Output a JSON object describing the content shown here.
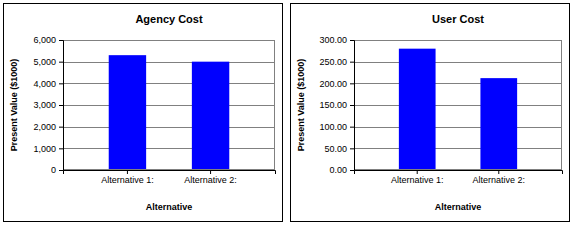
{
  "chart_data": [
    {
      "type": "bar",
      "title": "Agency Cost",
      "x_label": "Alternative",
      "y_label": "Present Value ($1000)",
      "categories": [
        "Alternative 1:",
        "Alternative 2:"
      ],
      "values": [
        5300,
        5000
      ],
      "color": "#0000ff",
      "ylim": [
        0,
        6000
      ],
      "yticks": [
        0,
        {
          "value": 1000,
          "label": "1,000"
        },
        {
          "value": 2000,
          "label": "2,000"
        },
        {
          "value": 3000,
          "label": "3,000"
        },
        {
          "value": 4000,
          "label": "4,000"
        },
        {
          "value": 5000,
          "label": "5,000"
        },
        {
          "value": 6000,
          "label": "6,000"
        }
      ],
      "grid": true
    },
    {
      "type": "bar",
      "title": "User Cost",
      "x_label": "Alternative",
      "y_label": "Present Value ($1000)",
      "categories": [
        "Alternative 1:",
        "Alternative 2:"
      ],
      "values": [
        280,
        212
      ],
      "color": "#0000ff",
      "ylim": [
        0,
        300
      ],
      "yticks": [
        {
          "value": 0,
          "label": "0.00"
        },
        {
          "value": 50,
          "label": "50.00"
        },
        {
          "value": 100,
          "label": "100.00"
        },
        {
          "value": 150,
          "label": "150.00"
        },
        {
          "value": 200,
          "label": "200.00"
        },
        {
          "value": 250,
          "label": "250.00"
        },
        {
          "value": 300,
          "label": "300.00"
        }
      ],
      "grid": true
    }
  ]
}
